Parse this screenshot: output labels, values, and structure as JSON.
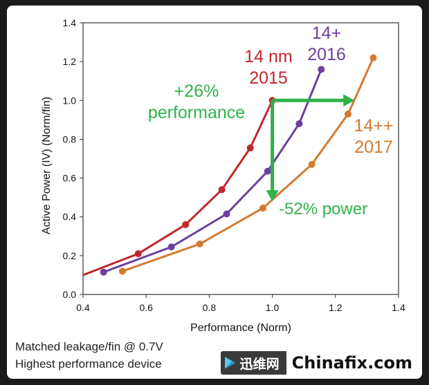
{
  "chart_data": {
    "type": "line",
    "xlabel": "Performance (Norm)",
    "ylabel": "Active Power (IV) (Norm/fin)",
    "xlim": [
      0.4,
      1.4
    ],
    "ylim": [
      0.0,
      1.4
    ],
    "xticks": [
      "0.4",
      "0.6",
      "0.8",
      "1.0",
      "1.2",
      "1.4"
    ],
    "yticks": [
      "0.0",
      "0.2",
      "0.4",
      "0.6",
      "0.8",
      "1.0",
      "1.2",
      "1.4"
    ],
    "grid": false,
    "series": [
      {
        "name": "14 nm 2015",
        "label_lines": [
          "14 nm",
          "2015"
        ],
        "color": "#c0272d",
        "x": [
          0.4,
          0.575,
          0.725,
          0.84,
          0.93,
          1.0
        ],
        "y": [
          0.1,
          0.21,
          0.36,
          0.54,
          0.755,
          1.0
        ],
        "markers": [
          false,
          true,
          true,
          true,
          true,
          true
        ]
      },
      {
        "name": "14+ 2016",
        "label_lines": [
          "14+",
          "2016"
        ],
        "color": "#6a3fa0",
        "x": [
          0.465,
          0.68,
          0.855,
          0.985,
          1.085,
          1.155
        ],
        "y": [
          0.115,
          0.245,
          0.415,
          0.635,
          0.88,
          1.16
        ],
        "markers": [
          true,
          true,
          true,
          true,
          true,
          true
        ]
      },
      {
        "name": "14++ 2017",
        "label_lines": [
          "14++",
          "2017"
        ],
        "color": "#d47a2e",
        "x": [
          0.525,
          0.77,
          0.97,
          1.125,
          1.24,
          1.32
        ],
        "y": [
          0.12,
          0.26,
          0.445,
          0.67,
          0.93,
          1.22
        ],
        "markers": [
          true,
          true,
          true,
          true,
          true,
          true
        ]
      }
    ],
    "annotations": {
      "color": "#2fb24a",
      "performance_lines": [
        "+26%",
        "performance"
      ],
      "power_text": "-52% power",
      "h_arrow": {
        "from": [
          1.0,
          1.0
        ],
        "to": [
          1.26,
          1.0
        ]
      },
      "v_arrow": {
        "from": [
          1.0,
          1.0
        ],
        "to": [
          1.0,
          0.48
        ]
      }
    }
  },
  "footnotes": [
    "Matched leakage/fin @ 0.7V",
    "Highest performance device"
  ],
  "watermark": {
    "left_text": "迅维网",
    "right_text": "Chinafix.com"
  }
}
